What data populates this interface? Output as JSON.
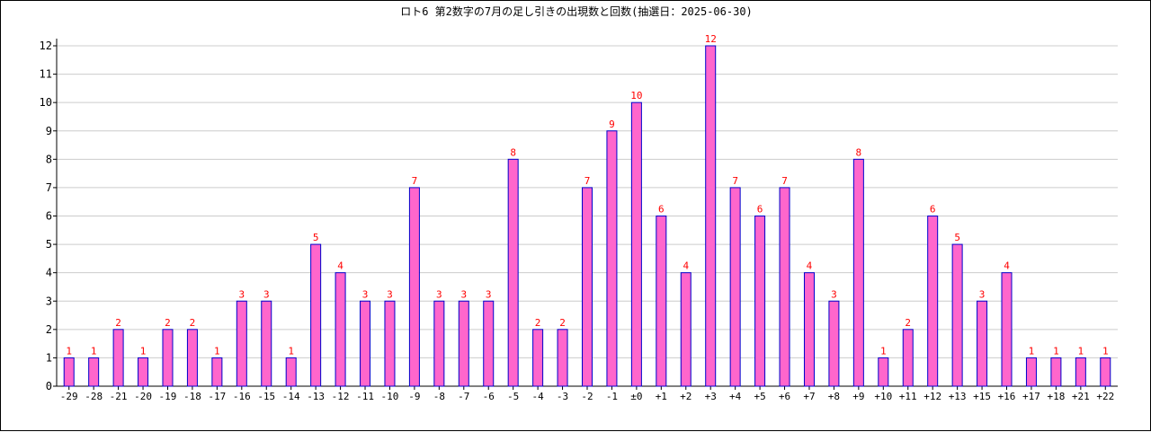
{
  "chart_data": {
    "type": "bar",
    "title": "ロト6 第2数字の7月の足し引きの出現数と回数(抽選日：2025-06-30)",
    "xlabel": "",
    "ylabel": "",
    "ylim": [
      0,
      12
    ],
    "yticks": [
      0,
      1,
      2,
      3,
      4,
      5,
      6,
      7,
      8,
      9,
      10,
      11,
      12
    ],
    "grid": true,
    "categories": [
      "-29",
      "-28",
      "-21",
      "-20",
      "-19",
      "-18",
      "-17",
      "-16",
      "-15",
      "-14",
      "-13",
      "-12",
      "-11",
      "-10",
      "-9",
      "-8",
      "-7",
      "-6",
      "-5",
      "-4",
      "-3",
      "-2",
      "-1",
      "±0",
      "+1",
      "+2",
      "+3",
      "+4",
      "+5",
      "+6",
      "+7",
      "+8",
      "+9",
      "+10",
      "+11",
      "+12",
      "+13",
      "+15",
      "+16",
      "+17",
      "+18",
      "+21",
      "+22"
    ],
    "values": [
      1,
      1,
      2,
      1,
      2,
      2,
      1,
      3,
      3,
      1,
      5,
      4,
      3,
      3,
      7,
      3,
      3,
      3,
      8,
      2,
      2,
      7,
      9,
      10,
      6,
      4,
      12,
      7,
      6,
      7,
      4,
      3,
      8,
      1,
      2,
      6,
      5,
      3,
      4,
      1,
      1,
      1,
      1
    ],
    "colors": {
      "bar_fill": "#ff66cc",
      "bar_stroke": "#0000cc",
      "data_label": "#ff0000",
      "grid": "#cccccc",
      "axis": "#000000"
    }
  }
}
